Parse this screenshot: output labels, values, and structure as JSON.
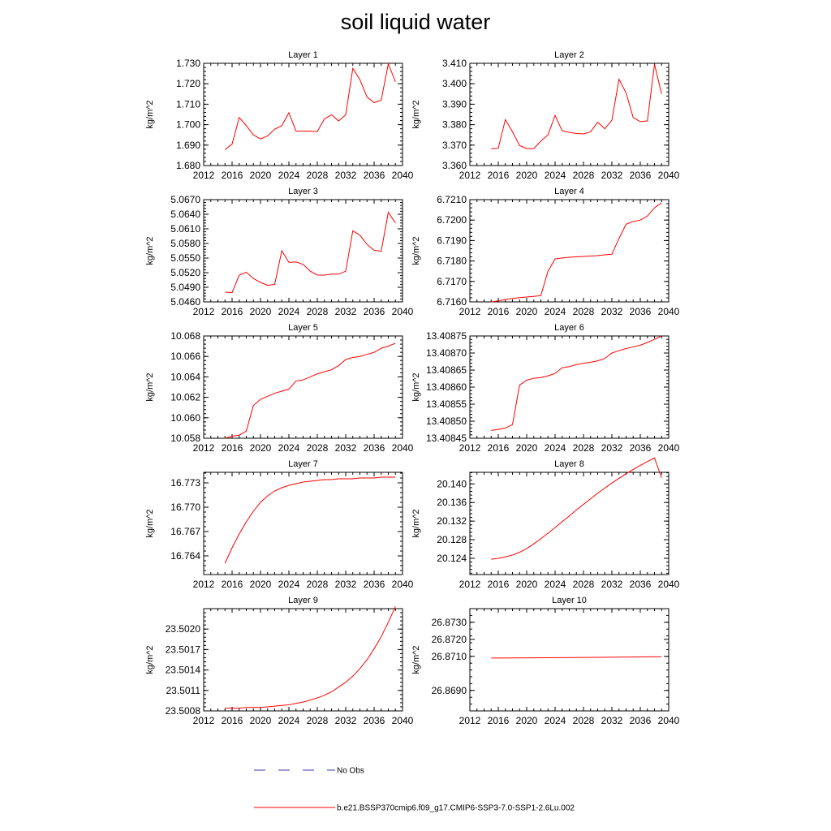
{
  "title": "soil liquid water",
  "legend": {
    "entries": [
      {
        "label": "No Obs",
        "color": "#3a3aa0",
        "dash": true
      },
      {
        "label": "b.e21.BSSP370cmip6.f09_g17.CMIP6-SSP3-7.0-SSP1-2.6Lu.002",
        "color": "#ff0000",
        "dash": false
      }
    ]
  },
  "chart_data": [
    {
      "type": "line",
      "title": "Layer 1",
      "ylabel": "kg/m^2",
      "xlim": [
        2012,
        2040
      ],
      "xticks": [
        2012,
        2016,
        2020,
        2024,
        2028,
        2032,
        2036,
        2040
      ],
      "ylim": [
        1.68,
        1.73
      ],
      "yticks": [
        "1.680",
        "1.690",
        "1.700",
        "1.710",
        "1.720",
        "1.730"
      ],
      "series": [
        {
          "color": "#ff0000",
          "x": [
            2015,
            2016,
            2017,
            2018,
            2019,
            2020,
            2021,
            2022,
            2023,
            2024,
            2025,
            2026,
            2027,
            2028,
            2029,
            2030,
            2031,
            2032,
            2033,
            2034,
            2035,
            2036,
            2037,
            2038,
            2039
          ],
          "y": [
            1.6878,
            1.6905,
            1.7035,
            1.6995,
            1.695,
            1.693,
            1.6945,
            1.6978,
            1.6995,
            1.7058,
            1.6968,
            1.6968,
            1.6968,
            1.6966,
            1.7028,
            1.7048,
            1.7018,
            1.7048,
            1.7275,
            1.722,
            1.7135,
            1.7108,
            1.712,
            1.7298,
            1.721
          ]
        }
      ]
    },
    {
      "type": "line",
      "title": "Layer 2",
      "ylabel": "kg/m^2",
      "xlim": [
        2012,
        2040
      ],
      "xticks": [
        2012,
        2016,
        2020,
        2024,
        2028,
        2032,
        2036,
        2040
      ],
      "ylim": [
        3.36,
        3.41
      ],
      "yticks": [
        "3.360",
        "3.370",
        "3.380",
        "3.390",
        "3.400",
        "3.410"
      ],
      "series": [
        {
          "color": "#ff0000",
          "x": [
            2015,
            2016,
            2017,
            2018,
            2019,
            2020,
            2021,
            2022,
            2023,
            2024,
            2025,
            2026,
            2027,
            2028,
            2029,
            2030,
            2031,
            2032,
            2033,
            2034,
            2035,
            2036,
            2037,
            2038,
            2039
          ],
          "y": [
            3.3682,
            3.3685,
            3.3825,
            3.3765,
            3.3698,
            3.3683,
            3.3683,
            3.372,
            3.375,
            3.3845,
            3.377,
            3.3762,
            3.3757,
            3.3755,
            3.3765,
            3.3812,
            3.378,
            3.3822,
            3.4022,
            3.3955,
            3.3835,
            3.3815,
            3.3818,
            3.4095,
            3.395
          ]
        }
      ]
    },
    {
      "type": "line",
      "title": "Layer 3",
      "ylabel": "kg/m^2",
      "xlim": [
        2012,
        2040
      ],
      "xticks": [
        2012,
        2016,
        2020,
        2024,
        2028,
        2032,
        2036,
        2040
      ],
      "ylim": [
        5.046,
        5.067
      ],
      "yticks": [
        "5.0460",
        "5.0490",
        "5.0520",
        "5.0550",
        "5.0580",
        "5.0610",
        "5.0640",
        "5.0670"
      ],
      "series": [
        {
          "color": "#ff0000",
          "x": [
            2015,
            2016,
            2017,
            2018,
            2019,
            2020,
            2021,
            2022,
            2023,
            2024,
            2025,
            2026,
            2027,
            2028,
            2029,
            2030,
            2031,
            2032,
            2033,
            2034,
            2035,
            2036,
            2037,
            2038,
            2039
          ],
          "y": [
            5.048,
            5.0479,
            5.0515,
            5.0521,
            5.0508,
            5.05,
            5.0494,
            5.0496,
            5.0565,
            5.0541,
            5.0542,
            5.0537,
            5.0523,
            5.0515,
            5.0515,
            5.0517,
            5.0517,
            5.0523,
            5.0606,
            5.0597,
            5.0578,
            5.0566,
            5.0564,
            5.0644,
            5.0622
          ]
        }
      ]
    },
    {
      "type": "line",
      "title": "Layer 4",
      "ylabel": "kg/m^2",
      "xlim": [
        2012,
        2040
      ],
      "xticks": [
        2012,
        2016,
        2020,
        2024,
        2028,
        2032,
        2036,
        2040
      ],
      "ylim": [
        6.716,
        6.721
      ],
      "yticks": [
        "6.7160",
        "6.7170",
        "6.7180",
        "6.7190",
        "6.7200",
        "6.7210"
      ],
      "series": [
        {
          "color": "#ff0000",
          "x": [
            2015,
            2016,
            2017,
            2018,
            2019,
            2020,
            2021,
            2022,
            2023,
            2024,
            2025,
            2026,
            2027,
            2028,
            2029,
            2030,
            2031,
            2032,
            2033,
            2034,
            2035,
            2036,
            2037,
            2038,
            2039
          ],
          "y": [
            6.716,
            6.71605,
            6.71612,
            6.71617,
            6.71621,
            6.71624,
            6.71627,
            6.71631,
            6.7175,
            6.7181,
            6.71815,
            6.71818,
            6.7182,
            6.71822,
            6.71824,
            6.71826,
            6.7183,
            6.71833,
            6.7191,
            6.7198,
            6.71993,
            6.72,
            6.7202,
            6.7206,
            6.72085
          ]
        }
      ]
    },
    {
      "type": "line",
      "title": "Layer 5",
      "ylabel": "kg/m^2",
      "xlim": [
        2012,
        2040
      ],
      "xticks": [
        2012,
        2016,
        2020,
        2024,
        2028,
        2032,
        2036,
        2040
      ],
      "ylim": [
        10.058,
        10.068
      ],
      "yticks": [
        "10.058",
        "10.060",
        "10.062",
        "10.064",
        "10.066",
        "10.068"
      ],
      "series": [
        {
          "color": "#ff0000",
          "x": [
            2015,
            2016,
            2017,
            2018,
            2019,
            2020,
            2021,
            2022,
            2023,
            2024,
            2025,
            2026,
            2027,
            2028,
            2029,
            2030,
            2031,
            2032,
            2033,
            2034,
            2035,
            2036,
            2037,
            2038,
            2039
          ],
          "y": [
            10.058,
            10.0582,
            10.0583,
            10.0587,
            10.0612,
            10.0618,
            10.0621,
            10.0624,
            10.0626,
            10.0628,
            10.0636,
            10.0637,
            10.064,
            10.0643,
            10.0645,
            10.0647,
            10.0651,
            10.0657,
            10.0659,
            10.066,
            10.0662,
            10.0664,
            10.0668,
            10.067,
            10.0673
          ]
        }
      ]
    },
    {
      "type": "line",
      "title": "Layer 6",
      "ylabel": "kg/m^2",
      "xlim": [
        2012,
        2040
      ],
      "xticks": [
        2012,
        2016,
        2020,
        2024,
        2028,
        2032,
        2036,
        2040
      ],
      "ylim": [
        13.40845,
        13.40875
      ],
      "yticks": [
        "13.40845",
        "13.40850",
        "13.40855",
        "13.40860",
        "13.40865",
        "13.40870",
        "13.40875"
      ],
      "series": [
        {
          "color": "#ff0000",
          "x": [
            2015,
            2016,
            2017,
            2018,
            2019,
            2020,
            2021,
            2022,
            2023,
            2024,
            2025,
            2026,
            2027,
            2028,
            2029,
            2030,
            2031,
            2032,
            2033,
            2034,
            2035,
            2036,
            2037,
            2038,
            2039
          ],
          "y": [
            13.408473,
            13.408476,
            13.40848,
            13.40849,
            13.408606,
            13.40862,
            13.408626,
            13.408628,
            13.408633,
            13.40864,
            13.408657,
            13.40866,
            13.408666,
            13.40867,
            13.408673,
            13.408677,
            13.408684,
            13.4087,
            13.408707,
            13.408713,
            13.408718,
            13.408723,
            13.408731,
            13.40874,
            13.40875
          ]
        }
      ]
    },
    {
      "type": "line",
      "title": "Layer 7",
      "ylabel": "kg/m^2",
      "xlim": [
        2012,
        2040
      ],
      "xticks": [
        2012,
        2016,
        2020,
        2024,
        2028,
        2032,
        2036,
        2040
      ],
      "ylim": [
        16.7617,
        16.7743
      ],
      "yticks": [
        "16.764",
        "16.767",
        "16.770",
        "16.773"
      ],
      "series": [
        {
          "color": "#ff0000",
          "x": [
            2015,
            2016,
            2017,
            2018,
            2019,
            2020,
            2021,
            2022,
            2023,
            2024,
            2025,
            2026,
            2027,
            2028,
            2029,
            2030,
            2031,
            2032,
            2033,
            2034,
            2035,
            2036,
            2037,
            2038,
            2039
          ],
          "y": [
            16.7631,
            16.765,
            16.7667,
            16.7682,
            16.7695,
            16.7706,
            16.7714,
            16.772,
            16.7724,
            16.7727,
            16.7729,
            16.7731,
            16.7732,
            16.7733,
            16.7734,
            16.7734,
            16.7735,
            16.7735,
            16.7735,
            16.7736,
            16.7736,
            16.7736,
            16.7737,
            16.7737,
            16.7737
          ]
        }
      ]
    },
    {
      "type": "line",
      "title": "Layer 8",
      "ylabel": "kg/m^2",
      "xlim": [
        2012,
        2040
      ],
      "xticks": [
        2012,
        2016,
        2020,
        2024,
        2028,
        2032,
        2036,
        2040
      ],
      "ylim": [
        20.1205,
        20.1425
      ],
      "yticks": [
        "20.124",
        "20.128",
        "20.132",
        "20.136",
        "20.140"
      ],
      "series": [
        {
          "color": "#ff0000",
          "x": [
            2015,
            2016,
            2017,
            2018,
            2019,
            2020,
            2021,
            2022,
            2023,
            2024,
            2025,
            2026,
            2027,
            2028,
            2029,
            2030,
            2031,
            2032,
            2033,
            2034,
            2035,
            2036,
            2037,
            2038,
            2039
          ],
          "y": [
            20.1238,
            20.124,
            20.1243,
            20.1247,
            20.1253,
            20.1261,
            20.1271,
            20.1282,
            20.1294,
            20.1306,
            20.1319,
            20.1331,
            20.1344,
            20.1356,
            20.1368,
            20.138,
            20.1391,
            20.1402,
            20.1412,
            20.1422,
            20.1431,
            20.144,
            20.1448,
            20.1456,
            20.1413
          ]
        }
      ]
    },
    {
      "type": "line",
      "title": "Layer 9",
      "ylabel": "kg/m^2",
      "xlim": [
        2012,
        2040
      ],
      "xticks": [
        2012,
        2016,
        2020,
        2024,
        2028,
        2032,
        2036,
        2040
      ],
      "ylim": [
        23.5008,
        23.5023
      ],
      "yticks": [
        "23.5008",
        "23.5011",
        "23.5014",
        "23.5017",
        "23.5020"
      ],
      "series": [
        {
          "color": "#ff0000",
          "x": [
            2015,
            2016,
            2017,
            2018,
            2019,
            2020,
            2021,
            2022,
            2023,
            2024,
            2025,
            2026,
            2027,
            2028,
            2029,
            2030,
            2031,
            2032,
            2033,
            2034,
            2035,
            2036,
            2037,
            2038,
            2039
          ],
          "y": [
            23.50084,
            23.50084,
            23.50084,
            23.50085,
            23.50085,
            23.50085,
            23.50086,
            23.50087,
            23.50088,
            23.50089,
            23.50091,
            23.50093,
            23.50096,
            23.50099,
            23.50103,
            23.50108,
            23.50115,
            23.50122,
            23.50131,
            23.50142,
            23.50155,
            23.50171,
            23.50189,
            23.5021,
            23.50233
          ]
        }
      ]
    },
    {
      "type": "line",
      "title": "Layer 10",
      "ylabel": "kg/m^2",
      "xlim": [
        2012,
        2040
      ],
      "xticks": [
        2012,
        2016,
        2020,
        2024,
        2028,
        2032,
        2036,
        2040
      ],
      "ylim": [
        26.8678,
        26.8738
      ],
      "yticks": [
        "26.8690",
        "26.8710",
        "26.8720",
        "26.8730"
      ],
      "series": [
        {
          "color": "#ff0000",
          "x": [
            2015,
            2027,
            2039
          ],
          "y": [
            26.8709,
            26.87093,
            26.87098
          ]
        }
      ]
    }
  ]
}
